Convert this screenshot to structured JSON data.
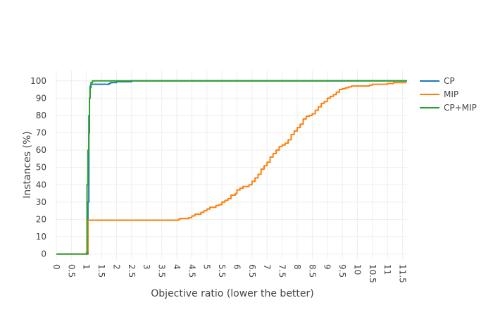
{
  "chart_data": {
    "type": "line",
    "title": "",
    "xlabel": "Objective ratio (lower the better)",
    "ylabel": "Instances (%)",
    "xlim": [
      0,
      11.65
    ],
    "ylim": [
      -3,
      106
    ],
    "x_ticks": [
      "0",
      "0.5",
      "1",
      "1.5",
      "2",
      "2.5",
      "3",
      "3.5",
      "4",
      "4.5",
      "5",
      "5.5",
      "6",
      "6.5",
      "7",
      "7.5",
      "8",
      "8.5",
      "9",
      "9.5",
      "10",
      "10.5",
      "11",
      "11.5"
    ],
    "y_ticks": [
      "0",
      "10",
      "20",
      "30",
      "40",
      "50",
      "60",
      "70",
      "80",
      "90",
      "100"
    ],
    "grid": true,
    "legend_position": "top-right",
    "series": [
      {
        "name": "CP",
        "color": "#1f77b4",
        "x": [
          0,
          1.0,
          1.05,
          1.08,
          1.1,
          1.12,
          1.15,
          1.2,
          1.7,
          1.75,
          1.8,
          1.85,
          2.0,
          2.4,
          2.5,
          11.65
        ],
        "y": [
          0,
          0,
          30,
          70,
          90,
          96,
          98,
          98,
          98,
          98.5,
          99,
          99,
          99.5,
          99.5,
          100,
          100
        ]
      },
      {
        "name": "MIP",
        "color": "#ff7f0e",
        "x": [
          0,
          0.95,
          1.0,
          1.05,
          1.05,
          4.0,
          4.05,
          4.1,
          4.3,
          4.4,
          4.5,
          4.6,
          4.8,
          4.9,
          5.0,
          5.1,
          5.3,
          5.4,
          5.5,
          5.6,
          5.7,
          5.8,
          5.95,
          6.0,
          6.1,
          6.2,
          6.4,
          6.5,
          6.6,
          6.7,
          6.8,
          6.9,
          7.0,
          7.1,
          7.2,
          7.3,
          7.4,
          7.5,
          7.6,
          7.7,
          7.8,
          7.9,
          8.0,
          8.1,
          8.2,
          8.3,
          8.4,
          8.5,
          8.6,
          8.7,
          8.8,
          8.9,
          9.0,
          9.1,
          9.2,
          9.3,
          9.4,
          9.5,
          9.6,
          9.7,
          9.8,
          9.9,
          10.0,
          10.2,
          10.4,
          10.5,
          10.6,
          10.8,
          11.0,
          11.2,
          11.4,
          11.6
        ],
        "y": [
          0,
          0,
          1,
          1,
          19.5,
          19.5,
          20,
          20.5,
          20.5,
          21,
          22,
          23,
          24,
          25,
          26,
          27,
          28,
          28.5,
          30,
          31,
          32,
          34,
          35,
          37,
          38,
          39,
          40,
          42,
          44,
          46,
          49,
          51,
          53,
          56,
          58,
          60,
          62,
          63,
          64,
          66,
          69,
          71,
          73,
          75,
          78,
          79.5,
          80,
          81,
          83,
          85,
          87,
          88,
          90,
          91,
          92,
          93.5,
          95,
          95.5,
          96,
          96.5,
          97,
          97,
          97,
          97,
          97.5,
          98,
          98,
          98,
          98.5,
          99,
          99,
          100
        ]
      },
      {
        "name": "CP+MIP",
        "color": "#2ca02c",
        "x": [
          0,
          1.0,
          1.02,
          1.05,
          1.08,
          1.1,
          1.12,
          1.15,
          1.2,
          11.65
        ],
        "y": [
          0,
          0,
          40,
          60,
          80,
          90,
          97,
          99,
          100,
          100
        ]
      }
    ]
  }
}
